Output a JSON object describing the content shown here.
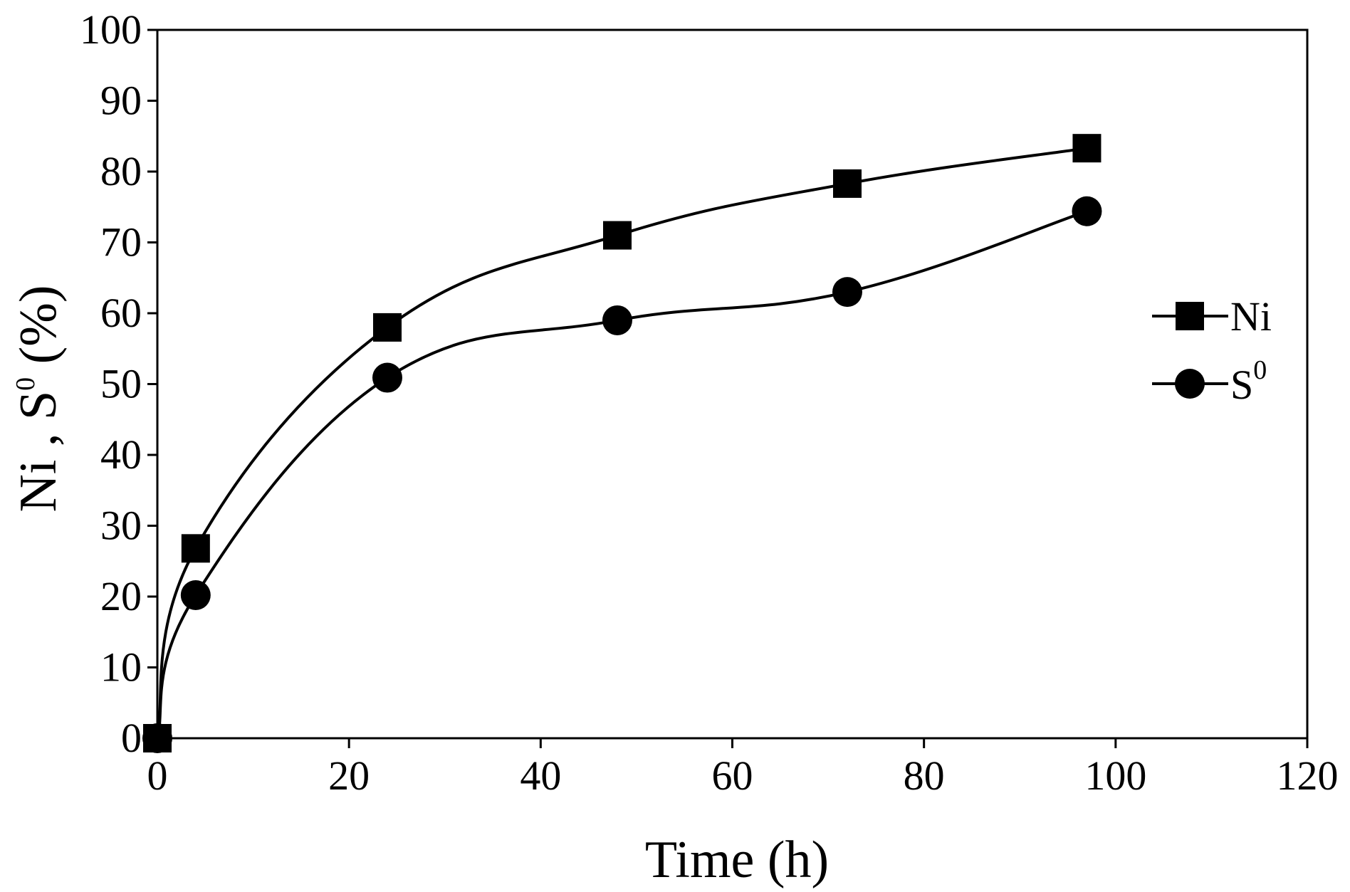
{
  "chart_data": {
    "type": "line",
    "xlabel": "Time (h)",
    "ylabel": {
      "base": "Ni , S",
      "sup": "0",
      "tail": " (%)"
    },
    "xlim": [
      0,
      120
    ],
    "ylim": [
      0,
      100
    ],
    "x_ticks": [
      0,
      20,
      40,
      60,
      80,
      100,
      120
    ],
    "y_ticks": [
      0,
      10,
      20,
      30,
      40,
      50,
      60,
      70,
      80,
      90,
      100
    ],
    "grid": false,
    "legend_position": "right",
    "series": [
      {
        "name": "Ni",
        "marker": "square",
        "label": {
          "base": "Ni",
          "sup": ""
        },
        "x": [
          0,
          4,
          24,
          48,
          72,
          97
        ],
        "y": [
          0,
          26.8,
          58,
          71,
          78.3,
          83.3
        ]
      },
      {
        "name": "S0",
        "marker": "circle",
        "label": {
          "base": "S",
          "sup": "0"
        },
        "x": [
          0,
          4,
          24,
          48,
          72,
          97
        ],
        "y": [
          0,
          20.2,
          50.9,
          59,
          63,
          74.4
        ]
      }
    ]
  }
}
